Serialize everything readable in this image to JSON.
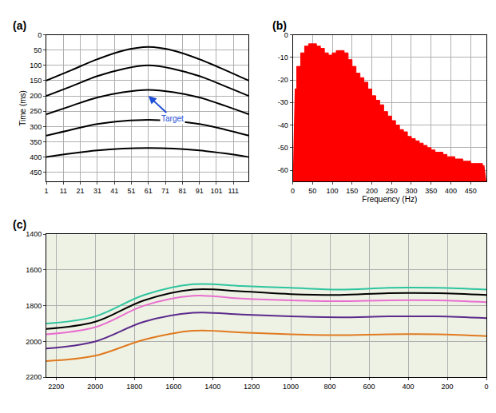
{
  "chart_data": [
    {
      "type": "line",
      "title": "(a)",
      "y_label": "Time (ms)",
      "grid": true,
      "tick_labels": true,
      "x": [
        1,
        16,
        31,
        46,
        61,
        76,
        91,
        106,
        120
      ],
      "xlim": [
        1,
        120
      ],
      "xticks": [
        1,
        11,
        21,
        31,
        41,
        51,
        61,
        71,
        81,
        91,
        101,
        111
      ],
      "ylim": [
        480,
        0
      ],
      "yticks": [
        0,
        50,
        100,
        150,
        200,
        250,
        300,
        350,
        400,
        450
      ],
      "series": [
        {
          "color": "#000000",
          "values": [
            150,
            115,
            80,
            52,
            40,
            52,
            80,
            115,
            150
          ]
        },
        {
          "color": "#000000",
          "values": [
            200,
            168,
            135,
            112,
            100,
            112,
            135,
            168,
            200
          ]
        },
        {
          "color": "#000000",
          "values": [
            260,
            232,
            205,
            188,
            180,
            188,
            205,
            232,
            260
          ]
        },
        {
          "color": "#000000",
          "values": [
            330,
            310,
            292,
            282,
            278,
            282,
            292,
            310,
            330
          ]
        },
        {
          "color": "#000000",
          "values": [
            400,
            388,
            378,
            372,
            370,
            372,
            378,
            388,
            400
          ]
        }
      ],
      "annotations": [
        {
          "text": "Target",
          "x": 61,
          "y": 200
        }
      ]
    },
    {
      "type": "area",
      "title": "(b)",
      "x_label": "Frequency (Hz)",
      "grid": true,
      "color": "#ff0000",
      "x": [
        5,
        15,
        25,
        35,
        45,
        55,
        65,
        75,
        85,
        95,
        105,
        115,
        125,
        135,
        145,
        155,
        165,
        175,
        185,
        195,
        205,
        215,
        225,
        235,
        245,
        255,
        265,
        275,
        285,
        295,
        305,
        315,
        325,
        335,
        345,
        355,
        365,
        375,
        385,
        395,
        405,
        415,
        425,
        435,
        445,
        455,
        465,
        475,
        485
      ],
      "values": [
        -24,
        -14,
        -8,
        -5,
        -4,
        -4,
        -5,
        -6,
        -8,
        -9,
        -8,
        -7,
        -7,
        -8,
        -11,
        -14,
        -17,
        -19,
        -21,
        -24,
        -27,
        -29,
        -31,
        -34,
        -36,
        -38,
        -40,
        -42,
        -43,
        -45,
        -46,
        -47,
        -48,
        -49,
        -50,
        -51,
        -52,
        -52,
        -53,
        -54,
        -54,
        -55,
        -55,
        -56,
        -56,
        -57,
        -57,
        -57,
        -58
      ],
      "xlim": [
        0,
        490
      ],
      "xticks": [
        0,
        50,
        100,
        150,
        200,
        250,
        300,
        350,
        400,
        450
      ],
      "ylim": [
        -65,
        0
      ],
      "yticks": [
        -60,
        -50,
        -40,
        -30,
        -20,
        -10,
        0
      ]
    },
    {
      "type": "line",
      "title": "(c)",
      "grid": true,
      "x": [
        2250,
        2000,
        1750,
        1500,
        1250,
        1000,
        750,
        500,
        250,
        0
      ],
      "xlim": [
        2250,
        0
      ],
      "xticks": [
        2200,
        2000,
        1800,
        1600,
        1400,
        1200,
        1000,
        800,
        600,
        400,
        200,
        0
      ],
      "ylim": [
        2200,
        1400
      ],
      "yticks": [
        1400,
        1600,
        1800,
        2000,
        2200
      ],
      "series": [
        {
          "color": "#2ec4a0",
          "values": [
            1900,
            1860,
            1740,
            1680,
            1690,
            1700,
            1710,
            1700,
            1700,
            1710
          ]
        },
        {
          "color": "#000000",
          "values": [
            1930,
            1890,
            1770,
            1710,
            1720,
            1735,
            1740,
            1730,
            1730,
            1740
          ]
        },
        {
          "color": "#e86fd0",
          "values": [
            1960,
            1920,
            1800,
            1745,
            1760,
            1770,
            1775,
            1770,
            1770,
            1780
          ]
        },
        {
          "color": "#5b2a8c",
          "values": [
            2040,
            2000,
            1890,
            1840,
            1850,
            1860,
            1865,
            1860,
            1860,
            1870
          ]
        },
        {
          "color": "#e07a20",
          "values": [
            2110,
            2080,
            1990,
            1940,
            1950,
            1960,
            1965,
            1960,
            1960,
            1970
          ]
        }
      ]
    }
  ]
}
